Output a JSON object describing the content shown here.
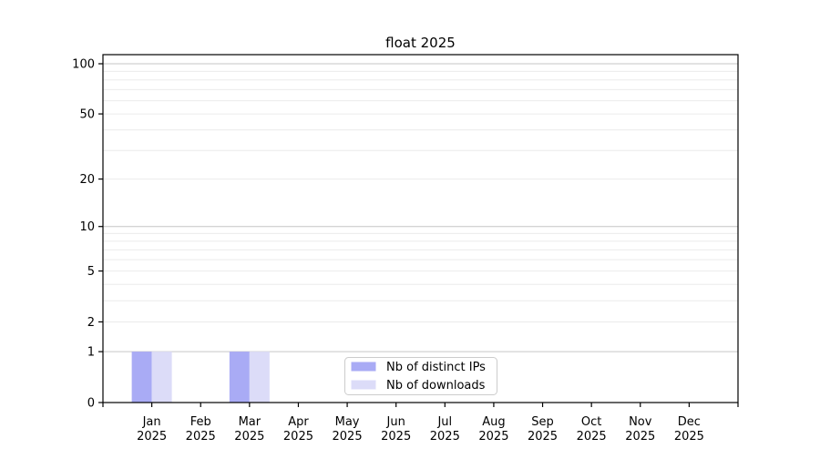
{
  "chart_data": {
    "type": "bar",
    "title": "float 2025",
    "categories": [
      "Jan",
      "Feb",
      "Mar",
      "Apr",
      "May",
      "Jun",
      "Jul",
      "Aug",
      "Sep",
      "Oct",
      "Nov",
      "Dec"
    ],
    "year": "2025",
    "series": [
      {
        "name": "Nb of distinct IPs",
        "color": "#a9abf5",
        "values": [
          1,
          0,
          1,
          0,
          0,
          0,
          0,
          0,
          0,
          0,
          0,
          0
        ]
      },
      {
        "name": "Nb of downloads",
        "color": "#dcdcf8",
        "values": [
          1,
          0,
          1,
          0,
          0,
          0,
          0,
          0,
          0,
          0,
          0,
          0
        ]
      }
    ],
    "xlabel": "",
    "ylabel": "",
    "yscale": "log1p",
    "ylim": [
      0,
      114
    ],
    "yticks": [
      100,
      50,
      20,
      10,
      5,
      2,
      1,
      0
    ],
    "minor_yticks": [
      2,
      3,
      4,
      5,
      6,
      7,
      8,
      9,
      20,
      30,
      40,
      50,
      60,
      70,
      80,
      90
    ],
    "major_gridlines": [
      1,
      10,
      100
    ],
    "grid": "horizontal",
    "legend_position": "lower center"
  },
  "colors": {
    "background": "#ffffff",
    "axis": "#000000",
    "major_grid": "#c6c6c6",
    "minor_grid": "#ebebeb",
    "legend_border": "#cccccc",
    "text": "#000000"
  }
}
